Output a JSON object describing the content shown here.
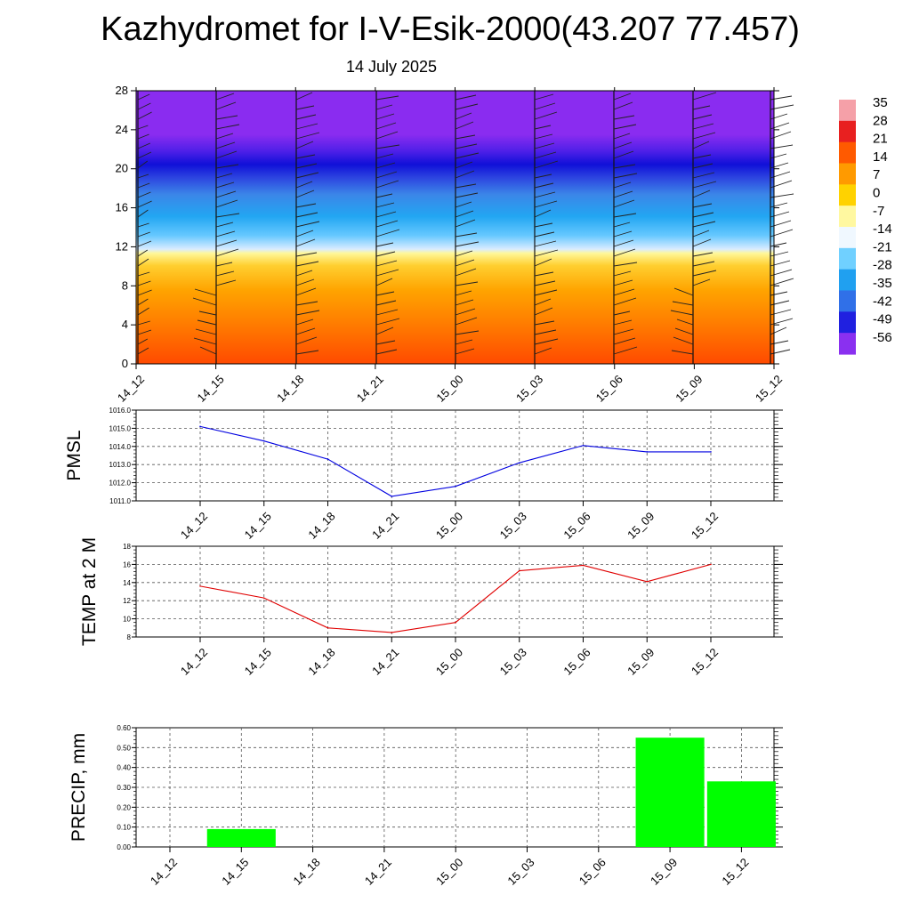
{
  "title": "Kazhydromet for I-V-Esik-2000(43.207 77.457)",
  "subtitle": "14 July 2025",
  "chart_data": [
    {
      "type": "heatmap",
      "name": "temperature-profile",
      "y_ticks": [
        "0",
        "4",
        "8",
        "12",
        "16",
        "20",
        "24",
        "28"
      ],
      "ylim": [
        0,
        28
      ],
      "x_ticks": [
        "14_12",
        "14_15",
        "14_18",
        "14_21",
        "15_00",
        "15_03",
        "15_06",
        "15_09",
        "15_12"
      ],
      "colorbar_labels": [
        "35",
        "28",
        "21",
        "14",
        "7",
        "0",
        "-7",
        "-14",
        "-21",
        "-28",
        "-35",
        "-42",
        "-49",
        "-56"
      ],
      "colors": {
        "warm": [
          "#ff4a00",
          "#ff7a00",
          "#ffa400",
          "#ffcf30",
          "#fff79a"
        ],
        "cold": [
          "#d9ecff",
          "#66c8ff",
          "#22a6f2",
          "#3b86e8",
          "#2d46e0",
          "#1010d8",
          "#8a2cf0"
        ],
        "colorbar": [
          "#f5a0a8",
          "#e82020",
          "#ff5a00",
          "#ff9a00",
          "#ffd200",
          "#fff8a0",
          "#f0f8ff",
          "#70d0ff",
          "#20a0f0",
          "#3070e8",
          "#2020e0",
          "#8a30f0"
        ]
      }
    },
    {
      "type": "line",
      "name": "pmsl",
      "ylabel": "PMSL",
      "categories": [
        "14_12",
        "14_15",
        "14_18",
        "14_21",
        "15_00",
        "15_03",
        "15_06",
        "15_09",
        "15_12"
      ],
      "values": [
        1015.1,
        1014.3,
        1013.3,
        1011.25,
        1011.8,
        1013.1,
        1014.05,
        1013.7,
        1013.7
      ],
      "ylim": [
        1011.0,
        1016.0
      ],
      "y_ticks": [
        "1011.0",
        "1012.0",
        "1013.0",
        "1014.0",
        "1015.0",
        "1016.0"
      ],
      "color": "#0000e0",
      "grid": true
    },
    {
      "type": "line",
      "name": "temp2m",
      "ylabel": "TEMP at 2 M",
      "categories": [
        "14_12",
        "14_15",
        "14_18",
        "14_21",
        "15_00",
        "15_03",
        "15_06",
        "15_09",
        "15_12"
      ],
      "values": [
        13.6,
        12.3,
        9.0,
        8.5,
        9.6,
        15.3,
        15.9,
        14.1,
        16.0
      ],
      "ylim": [
        8,
        18
      ],
      "y_ticks": [
        "8",
        "10",
        "12",
        "14",
        "16",
        "18"
      ],
      "color": "#e00000",
      "grid": true
    },
    {
      "type": "bar",
      "name": "precip",
      "ylabel": "PRECIP, mm",
      "categories": [
        "14_12",
        "14_15",
        "14_18",
        "14_21",
        "15_00",
        "15_03",
        "15_06",
        "15_09",
        "15_12"
      ],
      "values": [
        0.0,
        0.09,
        0.0,
        0.0,
        0.0,
        0.0,
        0.0,
        0.55,
        0.33
      ],
      "ylim": [
        0,
        0.6
      ],
      "y_ticks": [
        "0.00",
        "0.10",
        "0.20",
        "0.30",
        "0.40",
        "0.50",
        "0.60"
      ],
      "color": "#00ff00",
      "grid": true
    }
  ]
}
